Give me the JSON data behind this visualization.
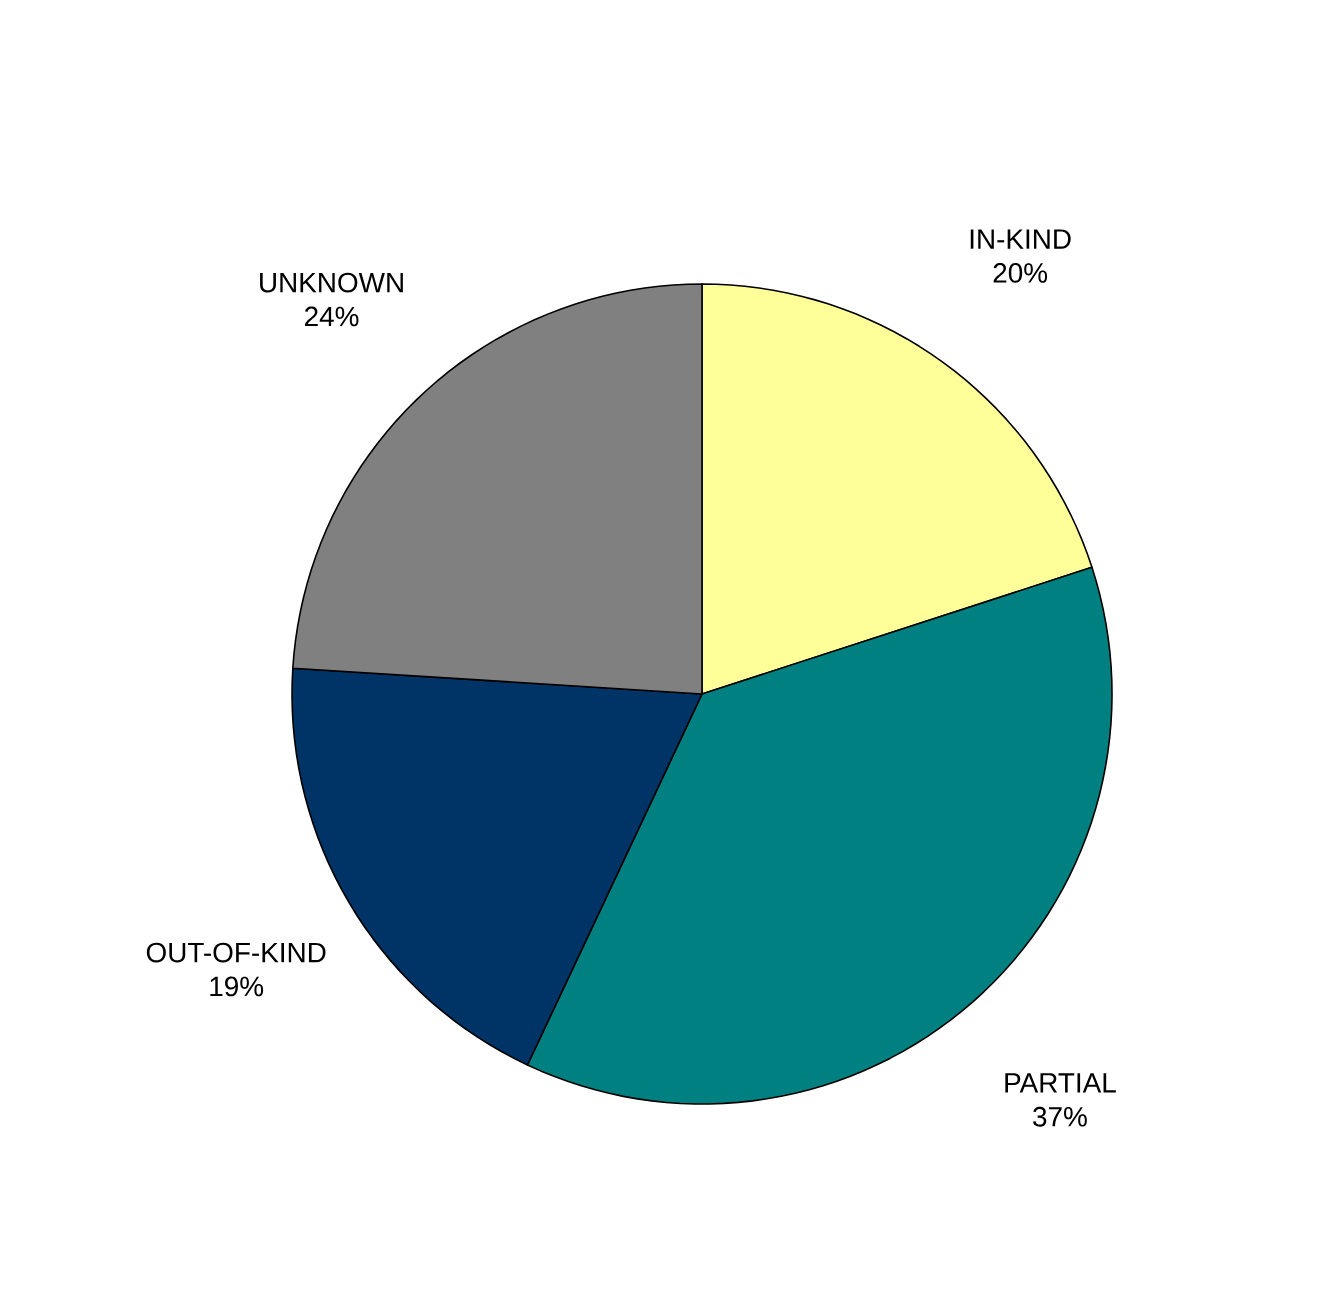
{
  "chart_data": {
    "type": "pie",
    "categories": [
      "IN-KIND",
      "PARTIAL",
      "OUT-OF-KIND",
      "UNKNOWN"
    ],
    "values": [
      20,
      37,
      19,
      24
    ],
    "value_labels": [
      "20%",
      "37%",
      "19%",
      "24%"
    ],
    "colors": [
      "#ffff99",
      "#008080",
      "#003366",
      "#808080"
    ]
  }
}
